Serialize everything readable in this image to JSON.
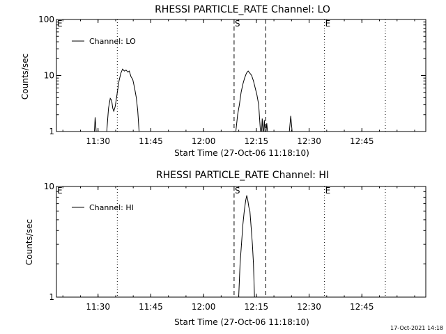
{
  "footer": {
    "timestamp": "17-Oct-2021 14:18"
  },
  "chart_data": [
    {
      "type": "line",
      "title": "RHESSI PARTICLE_RATE Channel: LO",
      "xlabel": "Start Time (27-Oct-06 11:18:10)",
      "ylabel": "Counts/sec",
      "yscale": "log",
      "ylim": [
        1,
        100
      ],
      "yticks": [
        1,
        10,
        100
      ],
      "ytick_labels": [
        "1",
        "10",
        "100"
      ],
      "xlim_minutes": [
        0,
        105
      ],
      "xtick_labels": [
        "11:30",
        "11:45",
        "12:00",
        "12:15",
        "12:30",
        "12:45"
      ],
      "xticks_minutes": [
        11.83,
        26.83,
        41.83,
        56.83,
        71.83,
        86.83
      ],
      "grid": false,
      "legend": {
        "position": "top-left",
        "entries": [
          "Channel: LO"
        ]
      },
      "markers": [
        {
          "label": "E",
          "minute": 0,
          "style": "dotted"
        },
        {
          "label": "",
          "minute": 17.3,
          "style": "dotted"
        },
        {
          "label": "S",
          "minute": 50.5,
          "style": "dashed"
        },
        {
          "label": "",
          "minute": 59.5,
          "style": "dashed"
        },
        {
          "label": "E",
          "minute": 76.2,
          "style": "dotted"
        },
        {
          "label": "",
          "minute": 93.5,
          "style": "dotted"
        }
      ],
      "series": [
        {
          "name": "Channel: LO",
          "segments": [
            [
              [
                10.8,
                1
              ],
              [
                11.0,
                1.8
              ],
              [
                11.3,
                1
              ]
            ],
            [
              [
                14.3,
                1
              ],
              [
                14.8,
                2.6
              ],
              [
                15.3,
                3.9
              ],
              [
                15.7,
                3.6
              ],
              [
                16.0,
                2.6
              ],
              [
                16.3,
                2.3
              ],
              [
                16.7,
                2.8
              ],
              [
                17.2,
                4.5
              ],
              [
                17.8,
                8
              ],
              [
                18.3,
                11
              ],
              [
                18.8,
                13
              ],
              [
                19.3,
                12
              ],
              [
                19.8,
                12.5
              ],
              [
                20.3,
                11.5
              ],
              [
                20.7,
                12
              ],
              [
                21.2,
                9.5
              ],
              [
                21.7,
                8.5
              ],
              [
                22.2,
                6
              ],
              [
                22.7,
                4
              ],
              [
                23.1,
                2.4
              ],
              [
                23.5,
                1
              ]
            ],
            [
              [
                51.0,
                1
              ],
              [
                51.5,
                2
              ],
              [
                52.0,
                3
              ],
              [
                52.5,
                5
              ],
              [
                53.0,
                7
              ],
              [
                53.5,
                9
              ],
              [
                54.0,
                11
              ],
              [
                54.5,
                12
              ],
              [
                55.0,
                11
              ],
              [
                55.5,
                10
              ],
              [
                56.0,
                8
              ],
              [
                56.5,
                6
              ],
              [
                57.0,
                4.5
              ],
              [
                57.5,
                3
              ],
              [
                57.8,
                1.5
              ],
              [
                58.0,
                1
              ]
            ],
            [
              [
                58.3,
                1
              ],
              [
                58.5,
                1.7
              ],
              [
                58.7,
                1
              ]
            ],
            [
              [
                58.9,
                1
              ],
              [
                59.1,
                1.6
              ],
              [
                59.3,
                1
              ]
            ],
            [
              [
                59.6,
                1
              ],
              [
                59.8,
                1.4
              ],
              [
                60.0,
                1
              ]
            ],
            [
              [
                66.2,
                1
              ],
              [
                66.6,
                1.9
              ],
              [
                67.0,
                1
              ]
            ]
          ]
        }
      ]
    },
    {
      "type": "line",
      "title": "RHESSI PARTICLE_RATE Channel: HI",
      "xlabel": "Start Time (27-Oct-06 11:18:10)",
      "ylabel": "Counts/sec",
      "yscale": "log",
      "ylim": [
        1,
        10
      ],
      "yticks": [
        1,
        10
      ],
      "ytick_labels": [
        "1",
        "10"
      ],
      "xlim_minutes": [
        0,
        105
      ],
      "xtick_labels": [
        "11:30",
        "11:45",
        "12:00",
        "12:15",
        "12:30",
        "12:45"
      ],
      "xticks_minutes": [
        11.83,
        26.83,
        41.83,
        56.83,
        71.83,
        86.83
      ],
      "grid": false,
      "legend": {
        "position": "top-left",
        "entries": [
          "Channel: HI"
        ]
      },
      "markers": [
        {
          "label": "E",
          "minute": 0,
          "style": "dotted"
        },
        {
          "label": "",
          "minute": 17.3,
          "style": "dotted"
        },
        {
          "label": "S",
          "minute": 50.5,
          "style": "dashed"
        },
        {
          "label": "",
          "minute": 59.5,
          "style": "dashed"
        },
        {
          "label": "E",
          "minute": 76.2,
          "style": "dotted"
        },
        {
          "label": "",
          "minute": 93.5,
          "style": "dotted"
        }
      ],
      "series": [
        {
          "name": "Channel: HI",
          "segments": [
            [
              [
                51.8,
                1
              ],
              [
                52.2,
                2
              ],
              [
                52.6,
                3
              ],
              [
                53.0,
                4.5
              ],
              [
                53.4,
                6
              ],
              [
                53.8,
                7.5
              ],
              [
                54.1,
                8.3
              ],
              [
                54.4,
                7.5
              ],
              [
                54.7,
                6.5
              ],
              [
                55.0,
                6
              ],
              [
                55.3,
                4.5
              ],
              [
                55.7,
                3
              ],
              [
                56.0,
                2
              ],
              [
                56.3,
                1
              ]
            ]
          ]
        }
      ]
    }
  ]
}
